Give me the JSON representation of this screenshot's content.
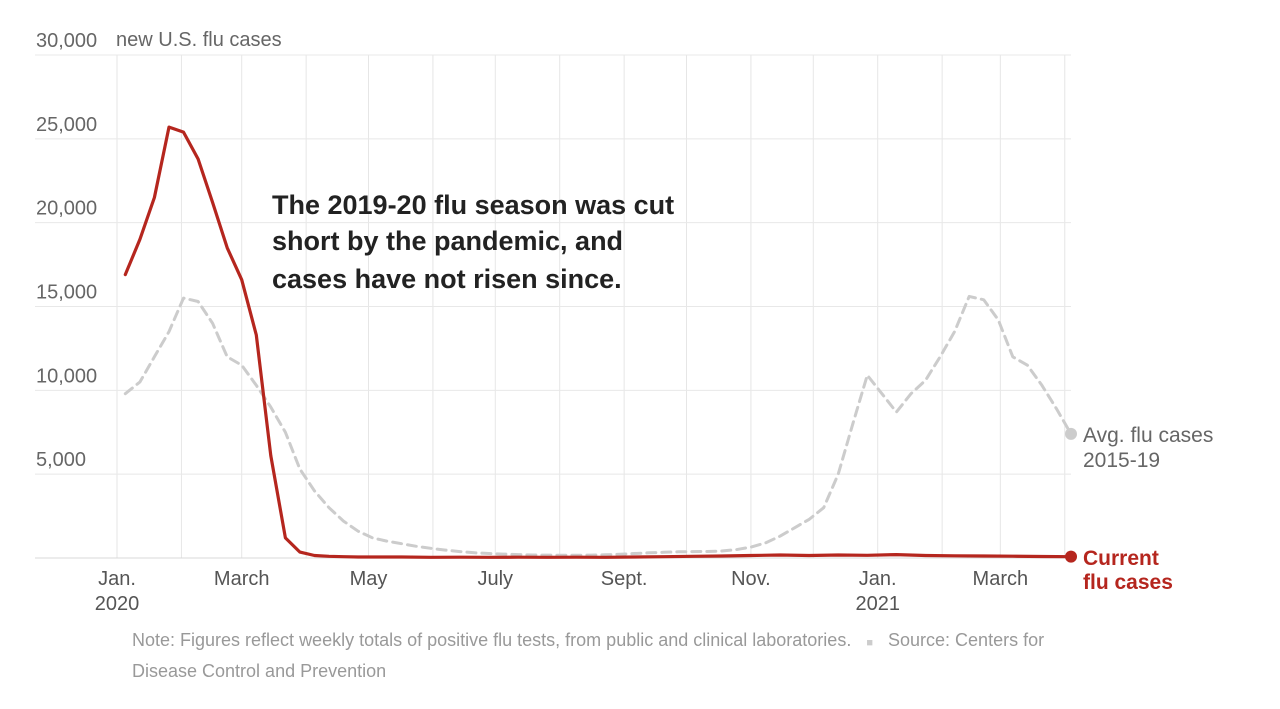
{
  "chart_data": {
    "type": "line",
    "unit_label": "new U.S. flu cases",
    "annotation_lines": [
      "The 2019-20 flu season was cut",
      "short by the pandemic, and",
      "cases have not risen since."
    ],
    "ylim": [
      0,
      30000
    ],
    "yticks": [
      {
        "value": 5000,
        "label": "5,000"
      },
      {
        "value": 10000,
        "label": "10,000"
      },
      {
        "value": 15000,
        "label": "15,000"
      },
      {
        "value": 20000,
        "label": "20,000"
      },
      {
        "value": 25000,
        "label": "25,000"
      },
      {
        "value": 30000,
        "label": "30,000"
      }
    ],
    "xlim": [
      "2020-01-01",
      "2021-04-04"
    ],
    "xticks": [
      {
        "date": "2020-01-01",
        "label": "Jan.",
        "sub": "2020"
      },
      {
        "date": "2020-03-01",
        "label": "March",
        "sub": ""
      },
      {
        "date": "2020-05-01",
        "label": "May",
        "sub": ""
      },
      {
        "date": "2020-07-01",
        "label": "July",
        "sub": ""
      },
      {
        "date": "2020-09-01",
        "label": "Sept.",
        "sub": ""
      },
      {
        "date": "2020-11-01",
        "label": "Nov.",
        "sub": ""
      },
      {
        "date": "2021-01-01",
        "label": "Jan.",
        "sub": "2021"
      },
      {
        "date": "2021-03-01",
        "label": "March",
        "sub": ""
      }
    ],
    "grid": true,
    "series": [
      {
        "name": "Avg. flu cases 2015-19",
        "label_lines": [
          "Avg. flu cases",
          "2015-19"
        ],
        "color": "#cccccc",
        "dashed": true,
        "points": [
          [
            "2020-01-05",
            9800
          ],
          [
            "2020-01-12",
            10500
          ],
          [
            "2020-01-19",
            12000
          ],
          [
            "2020-01-26",
            13500
          ],
          [
            "2020-02-02",
            15500
          ],
          [
            "2020-02-09",
            15300
          ],
          [
            "2020-02-16",
            14000
          ],
          [
            "2020-02-23",
            12000
          ],
          [
            "2020-03-01",
            11500
          ],
          [
            "2020-03-08",
            10300
          ],
          [
            "2020-03-15",
            9000
          ],
          [
            "2020-03-22",
            7500
          ],
          [
            "2020-03-29",
            5300
          ],
          [
            "2020-04-05",
            4000
          ],
          [
            "2020-04-12",
            3000
          ],
          [
            "2020-04-19",
            2200
          ],
          [
            "2020-04-26",
            1600
          ],
          [
            "2020-05-03",
            1200
          ],
          [
            "2020-05-10",
            1000
          ],
          [
            "2020-05-17",
            850
          ],
          [
            "2020-05-24",
            700
          ],
          [
            "2020-05-31",
            580
          ],
          [
            "2020-06-07",
            470
          ],
          [
            "2020-06-14",
            380
          ],
          [
            "2020-06-21",
            310
          ],
          [
            "2020-06-28",
            270
          ],
          [
            "2020-07-05",
            230
          ],
          [
            "2020-07-12",
            200
          ],
          [
            "2020-07-19",
            180
          ],
          [
            "2020-07-26",
            170
          ],
          [
            "2020-08-02",
            160
          ],
          [
            "2020-08-09",
            160
          ],
          [
            "2020-08-16",
            170
          ],
          [
            "2020-08-23",
            190
          ],
          [
            "2020-08-30",
            220
          ],
          [
            "2020-09-06",
            270
          ],
          [
            "2020-09-13",
            310
          ],
          [
            "2020-09-20",
            340
          ],
          [
            "2020-09-27",
            370
          ],
          [
            "2020-10-04",
            380
          ],
          [
            "2020-10-11",
            390
          ],
          [
            "2020-10-18",
            420
          ],
          [
            "2020-10-25",
            500
          ],
          [
            "2020-11-01",
            650
          ],
          [
            "2020-11-08",
            900
          ],
          [
            "2020-11-15",
            1300
          ],
          [
            "2020-11-22",
            1800
          ],
          [
            "2020-11-29",
            2300
          ],
          [
            "2020-12-06",
            3000
          ],
          [
            "2020-12-13",
            5000
          ],
          [
            "2020-12-20",
            8000
          ],
          [
            "2020-12-27",
            10900
          ],
          [
            "2021-01-03",
            9800
          ],
          [
            "2021-01-10",
            8700
          ],
          [
            "2021-01-17",
            9800
          ],
          [
            "2021-01-24",
            10600
          ],
          [
            "2021-01-31",
            12000
          ],
          [
            "2021-02-07",
            13500
          ],
          [
            "2021-02-14",
            15600
          ],
          [
            "2021-02-21",
            15400
          ],
          [
            "2021-02-28",
            14200
          ],
          [
            "2021-03-07",
            12000
          ],
          [
            "2021-03-14",
            11500
          ],
          [
            "2021-03-21",
            10300
          ],
          [
            "2021-03-28",
            8900
          ],
          [
            "2021-04-04",
            7400
          ]
        ]
      },
      {
        "name": "Current flu cases",
        "label_lines": [
          "Current",
          "flu cases"
        ],
        "color": "#b5261e",
        "dashed": false,
        "points": [
          [
            "2020-01-05",
            16900
          ],
          [
            "2020-01-12",
            19000
          ],
          [
            "2020-01-19",
            21500
          ],
          [
            "2020-01-26",
            25700
          ],
          [
            "2020-02-02",
            25400
          ],
          [
            "2020-02-09",
            23800
          ],
          [
            "2020-02-16",
            21200
          ],
          [
            "2020-02-23",
            18500
          ],
          [
            "2020-03-01",
            16600
          ],
          [
            "2020-03-08",
            13300
          ],
          [
            "2020-03-15",
            6100
          ],
          [
            "2020-03-22",
            1200
          ],
          [
            "2020-03-29",
            350
          ],
          [
            "2020-04-05",
            150
          ],
          [
            "2020-04-12",
            100
          ],
          [
            "2020-04-19",
            80
          ],
          [
            "2020-04-26",
            60
          ],
          [
            "2020-05-03",
            60
          ],
          [
            "2020-05-17",
            60
          ],
          [
            "2020-05-31",
            40
          ],
          [
            "2020-06-14",
            50
          ],
          [
            "2020-06-28",
            40
          ],
          [
            "2020-07-12",
            50
          ],
          [
            "2020-07-26",
            40
          ],
          [
            "2020-08-09",
            50
          ],
          [
            "2020-08-23",
            40
          ],
          [
            "2020-09-06",
            60
          ],
          [
            "2020-09-20",
            80
          ],
          [
            "2020-10-04",
            100
          ],
          [
            "2020-10-18",
            120
          ],
          [
            "2020-11-01",
            150
          ],
          [
            "2020-11-15",
            180
          ],
          [
            "2020-11-29",
            150
          ],
          [
            "2020-12-13",
            180
          ],
          [
            "2020-12-27",
            160
          ],
          [
            "2021-01-10",
            200
          ],
          [
            "2021-01-24",
            150
          ],
          [
            "2021-02-07",
            130
          ],
          [
            "2021-02-21",
            120
          ],
          [
            "2021-03-07",
            110
          ],
          [
            "2021-03-21",
            90
          ],
          [
            "2021-04-04",
            80
          ]
        ]
      }
    ]
  },
  "footnote": {
    "note": "Note: Figures reflect weekly totals of positive flu tests, from public and clinical laboratories.",
    "separator": "■",
    "source": "Source: Centers for Disease Control and Prevention"
  }
}
